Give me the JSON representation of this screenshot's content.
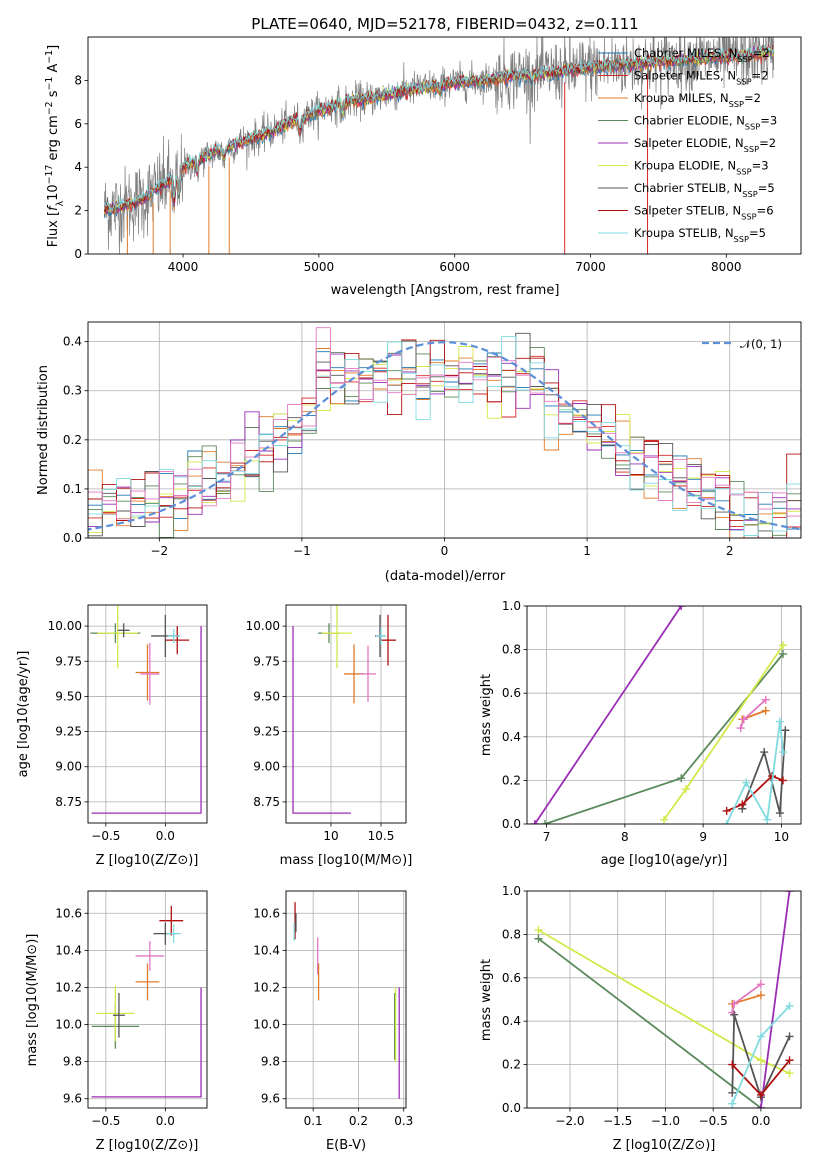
{
  "chart_data": [
    {
      "id": "spectrum",
      "type": "line",
      "title": "PLATE=0640, MJD=52178, FIBERID=0432, z=0.111",
      "xlabel": "wavelength [Angstrom, rest frame]",
      "ylabel": "Flux [f_λ10^-17 erg cm^-2 s^-1 A^-1]",
      "xlim": [
        3300,
        8550
      ],
      "ylim": [
        0,
        10
      ],
      "xticks": [
        4000,
        5000,
        6000,
        7000,
        8000
      ],
      "yticks": [
        0,
        2,
        4,
        6,
        8
      ],
      "grid": false,
      "legend_position": "top-right",
      "legend": [
        {
          "label": "Chabrier MILES, N_SSP=2",
          "color": "#1f77b4"
        },
        {
          "label": "Salpeter MILES, N_SSP=2",
          "color": "#d62728"
        },
        {
          "label": "Kroupa MILES, N_SSP=2",
          "color": "#e07b2a"
        },
        {
          "label": "Chabrier ELODIE, N_SSP=3",
          "color": "#5a8a5a"
        },
        {
          "label": "Salpeter ELODIE, N_SSP=2",
          "color": "#9b2db5"
        },
        {
          "label": "Kroupa ELODIE, N_SSP=3",
          "color": "#d4e84a"
        },
        {
          "label": "Chabrier STELIB, N_SSP=5",
          "color": "#555555"
        },
        {
          "label": "Salpeter STELIB, N_SSP=6",
          "color": "#b01010"
        },
        {
          "label": "Kroupa STELIB, N_SSP=5",
          "color": "#7fdbe0"
        }
      ],
      "data_color": "#808080",
      "model_trend": {
        "x": [
          3400,
          3500,
          3700,
          3900,
          4000,
          4200,
          4400,
          4600,
          4800,
          5000,
          5200,
          5400,
          5600,
          5800,
          6000,
          6200,
          6400,
          6600,
          6800,
          7000,
          7200,
          7400,
          7600,
          7800,
          8000,
          8200,
          8300
        ],
        "y": [
          2.0,
          2.1,
          2.5,
          3.4,
          4.0,
          4.6,
          5.1,
          5.5,
          6.1,
          6.6,
          7.0,
          7.2,
          7.5,
          7.7,
          7.9,
          8.0,
          8.2,
          8.3,
          8.4,
          8.6,
          8.7,
          8.8,
          8.9,
          9.0,
          9.1,
          9.2,
          9.3
        ]
      }
    },
    {
      "id": "residual-histogram",
      "type": "histogram",
      "xlabel": "(data-model)/error",
      "ylabel": "Normed distribution",
      "xlim": [
        -2.5,
        2.5
      ],
      "ylim": [
        0,
        0.44
      ],
      "xticks": [
        -2,
        -1,
        0,
        1,
        2
      ],
      "yticks": [
        0.0,
        0.1,
        0.2,
        0.3,
        0.4
      ],
      "grid": true,
      "legend_position": "top-right",
      "legend": [
        {
          "label": "𝒩(0, 1)",
          "color": "#5b8fd9",
          "style": "dashed"
        }
      ],
      "bin_width": 0.1,
      "series_colors": [
        "#1f77b4",
        "#d62728",
        "#e07b2a",
        "#5a8a5a",
        "#9b2db5",
        "#d4e84a",
        "#555555",
        "#b01010",
        "#7fdbe0",
        "#e377c2"
      ]
    },
    {
      "id": "age-vs-Z",
      "type": "scatter",
      "xlabel": "Z [log10(Z/Z⊙)]",
      "ylabel": "age  [log10(age/yr)]",
      "xlim": [
        -0.65,
        0.35
      ],
      "ylim": [
        8.6,
        10.15
      ],
      "xticks": [
        -0.5,
        0.0
      ],
      "xtick_labels": [
        "−0.5",
        "0.0"
      ],
      "yticks": [
        8.75,
        9.0,
        9.25,
        9.5,
        9.75,
        10.0
      ],
      "grid": true,
      "points": [
        {
          "x": -0.42,
          "y": 9.95,
          "xerr": 0.21,
          "yerr": 0.07,
          "color": "#5a8a5a"
        },
        {
          "x": -0.4,
          "y": 9.95,
          "xerr": 0.17,
          "yerr": 0.25,
          "color": "#d4e84a"
        },
        {
          "x": -0.35,
          "y": 9.97,
          "xerr": 0.05,
          "yerr": 0.05,
          "color": "#555555"
        },
        {
          "x": -0.15,
          "y": 9.67,
          "xerr": 0.1,
          "yerr": 0.2,
          "color": "#e07b2a"
        },
        {
          "x": -0.13,
          "y": 9.66,
          "xerr": 0.08,
          "yerr": 0.22,
          "color": "#e377c2"
        },
        {
          "x": 0.0,
          "y": 9.93,
          "xerr": 0.12,
          "yerr": 0.15,
          "color": "#555555"
        },
        {
          "x": 0.1,
          "y": 9.9,
          "xerr": 0.1,
          "yerr": 0.1,
          "color": "#b01010"
        },
        {
          "x": 0.07,
          "y": 9.93,
          "xerr": 0.05,
          "yerr": 0.05,
          "color": "#7fdbe0"
        }
      ]
    },
    {
      "id": "age-vs-mass",
      "type": "scatter",
      "xlabel": "mass [log10(M/M⊙)]",
      "ylabel": "",
      "xlim": [
        9.55,
        10.75
      ],
      "ylim": [
        8.6,
        10.15
      ],
      "xticks": [
        10.0,
        10.5
      ],
      "yticks": [
        8.75,
        9.0,
        9.25,
        9.5,
        9.75,
        10.0
      ],
      "grid": true,
      "points": [
        {
          "x": 9.98,
          "y": 9.95,
          "xerr": 0.11,
          "yerr": 0.07,
          "color": "#5a8a5a"
        },
        {
          "x": 10.06,
          "y": 9.95,
          "xerr": 0.15,
          "yerr": 0.25,
          "color": "#d4e84a"
        },
        {
          "x": 10.23,
          "y": 9.66,
          "xerr": 0.1,
          "yerr": 0.21,
          "color": "#e07b2a"
        },
        {
          "x": 10.37,
          "y": 9.66,
          "xerr": 0.08,
          "yerr": 0.2,
          "color": "#e377c2"
        },
        {
          "x": 10.49,
          "y": 9.93,
          "xerr": 0.05,
          "yerr": 0.15,
          "color": "#555555"
        },
        {
          "x": 10.57,
          "y": 9.9,
          "xerr": 0.08,
          "yerr": 0.18,
          "color": "#b01010"
        },
        {
          "x": 10.5,
          "y": 9.93,
          "xerr": 0.05,
          "yerr": 0.06,
          "color": "#7fdbe0"
        }
      ]
    },
    {
      "id": "weight-vs-age",
      "type": "line",
      "xlabel": "age  [log10(age/yr)]",
      "ylabel": "mass weight",
      "xlim": [
        6.75,
        10.25
      ],
      "ylim": [
        0,
        1
      ],
      "xticks": [
        7,
        8,
        9,
        10
      ],
      "yticks": [
        0.0,
        0.2,
        0.4,
        0.6,
        0.8,
        1.0
      ],
      "grid": true,
      "series": [
        {
          "color": "#9b2db5",
          "x": [
            6.85,
            8.72
          ],
          "y": [
            0.0,
            1.0
          ]
        },
        {
          "color": "#5a8a5a",
          "x": [
            6.98,
            8.72,
            10.02
          ],
          "y": [
            0.0,
            0.21,
            0.78
          ]
        },
        {
          "color": "#d4e84a",
          "x": [
            8.5,
            8.78,
            10.02
          ],
          "y": [
            0.02,
            0.16,
            0.82
          ]
        },
        {
          "color": "#e07b2a",
          "x": [
            9.5,
            9.8
          ],
          "y": [
            0.48,
            0.52
          ]
        },
        {
          "color": "#e377c2",
          "x": [
            9.48,
            9.52,
            9.8
          ],
          "y": [
            0.44,
            0.48,
            0.57
          ]
        },
        {
          "color": "#555555",
          "x": [
            9.5,
            9.78,
            9.98,
            10.05
          ],
          "y": [
            0.07,
            0.33,
            0.05,
            0.43
          ]
        },
        {
          "color": "#b01010",
          "x": [
            9.3,
            9.5,
            9.88,
            10.02
          ],
          "y": [
            0.06,
            0.09,
            0.22,
            0.2
          ]
        },
        {
          "color": "#7fdbe0",
          "x": [
            9.3,
            9.55,
            9.82,
            9.98,
            10.02
          ],
          "y": [
            0.0,
            0.19,
            0.02,
            0.47,
            0.33
          ]
        }
      ]
    },
    {
      "id": "mass-vs-Z",
      "type": "scatter",
      "xlabel": "Z [log10(Z/Z⊙)]",
      "ylabel": "mass [log10(M/M⊙)]",
      "xlim": [
        -0.65,
        0.35
      ],
      "ylim": [
        9.55,
        10.72
      ],
      "xticks": [
        -0.5,
        0.0
      ],
      "xtick_labels": [
        "−0.5",
        "0.0"
      ],
      "yticks": [
        9.6,
        9.8,
        10.0,
        10.2,
        10.4,
        10.6
      ],
      "grid": true,
      "points": [
        {
          "x": -0.42,
          "y": 9.99,
          "xerr": 0.2,
          "yerr": 0.12,
          "color": "#5a8a5a"
        },
        {
          "x": -0.42,
          "y": 10.06,
          "xerr": 0.16,
          "yerr": 0.15,
          "color": "#d4e84a"
        },
        {
          "x": -0.39,
          "y": 10.05,
          "xerr": 0.05,
          "yerr": 0.12,
          "color": "#555555"
        },
        {
          "x": -0.15,
          "y": 10.23,
          "xerr": 0.1,
          "yerr": 0.1,
          "color": "#e07b2a"
        },
        {
          "x": -0.13,
          "y": 10.37,
          "xerr": 0.12,
          "yerr": 0.08,
          "color": "#e377c2"
        },
        {
          "x": 0.0,
          "y": 10.49,
          "xerr": 0.1,
          "yerr": 0.06,
          "color": "#555555"
        },
        {
          "x": 0.05,
          "y": 10.56,
          "xerr": 0.1,
          "yerr": 0.08,
          "color": "#b01010"
        },
        {
          "x": 0.07,
          "y": 10.49,
          "xerr": 0.06,
          "yerr": 0.05,
          "color": "#7fdbe0"
        }
      ]
    },
    {
      "id": "mass-vs-EBV",
      "type": "scatter",
      "xlabel": "E(B-V)",
      "ylabel": "",
      "xlim": [
        0.04,
        0.305
      ],
      "ylim": [
        9.55,
        10.72
      ],
      "xticks": [
        0.1,
        0.2,
        0.3
      ],
      "yticks": [
        9.6,
        9.8,
        10.0,
        10.2,
        10.4,
        10.6
      ],
      "grid": true,
      "points": [
        {
          "x": 0.06,
          "y": 10.56,
          "xerr": 0.0,
          "yerr": 0.1,
          "color": "#b01010"
        },
        {
          "x": 0.058,
          "y": 10.5,
          "xerr": 0.0,
          "yerr": 0.05,
          "color": "#7fdbe0"
        },
        {
          "x": 0.062,
          "y": 10.55,
          "xerr": 0.0,
          "yerr": 0.05,
          "color": "#555555"
        },
        {
          "x": 0.11,
          "y": 10.37,
          "xerr": 0.0,
          "yerr": 0.1,
          "color": "#e377c2"
        },
        {
          "x": 0.112,
          "y": 10.23,
          "xerr": 0.0,
          "yerr": 0.1,
          "color": "#e07b2a"
        },
        {
          "x": 0.28,
          "y": 9.99,
          "xerr": 0.0,
          "yerr": 0.18,
          "color": "#5a8a5a"
        },
        {
          "x": 0.282,
          "y": 10.0,
          "xerr": 0.0,
          "yerr": 0.2,
          "color": "#d4e84a"
        },
        {
          "x": 0.29,
          "y": 9.9,
          "xerr": 0.0,
          "yerr": 0.3,
          "color": "#9b2db5"
        }
      ]
    },
    {
      "id": "weight-vs-Z",
      "type": "line",
      "xlabel": "Z [log10(Z/Z⊙)]",
      "ylabel": "mass weight",
      "xlim": [
        -2.45,
        0.42
      ],
      "ylim": [
        0,
        1
      ],
      "xticks": [
        -2.0,
        -1.5,
        -1.0,
        -0.5,
        0.0
      ],
      "xtick_labels": [
        "−2.0",
        "−1.5",
        "−1.0",
        "−0.5",
        "0.0"
      ],
      "yticks": [
        0.0,
        0.2,
        0.4,
        0.6,
        0.8,
        1.0
      ],
      "grid": true,
      "series": [
        {
          "color": "#5a8a5a",
          "x": [
            -2.33,
            0.0
          ],
          "y": [
            0.78,
            0.0
          ]
        },
        {
          "color": "#d4e84a",
          "x": [
            -2.33,
            0.0,
            0.3
          ],
          "y": [
            0.82,
            0.22,
            0.16
          ]
        },
        {
          "color": "#9b2db5",
          "x": [
            0.0,
            0.3
          ],
          "y": [
            0.0,
            1.0
          ]
        },
        {
          "color": "#e07b2a",
          "x": [
            -0.3,
            0.0
          ],
          "y": [
            0.48,
            0.52
          ]
        },
        {
          "color": "#e377c2",
          "x": [
            -0.3,
            -0.28,
            0.0
          ],
          "y": [
            0.44,
            0.48,
            0.57
          ]
        },
        {
          "color": "#555555",
          "x": [
            -0.3,
            -0.28,
            0.0,
            0.3
          ],
          "y": [
            0.07,
            0.43,
            0.05,
            0.33
          ]
        },
        {
          "color": "#b01010",
          "x": [
            -0.3,
            0.0,
            0.3
          ],
          "y": [
            0.2,
            0.06,
            0.22
          ]
        },
        {
          "color": "#7fdbe0",
          "x": [
            -0.3,
            0.0,
            0.3
          ],
          "y": [
            0.02,
            0.33,
            0.47
          ]
        }
      ]
    }
  ]
}
